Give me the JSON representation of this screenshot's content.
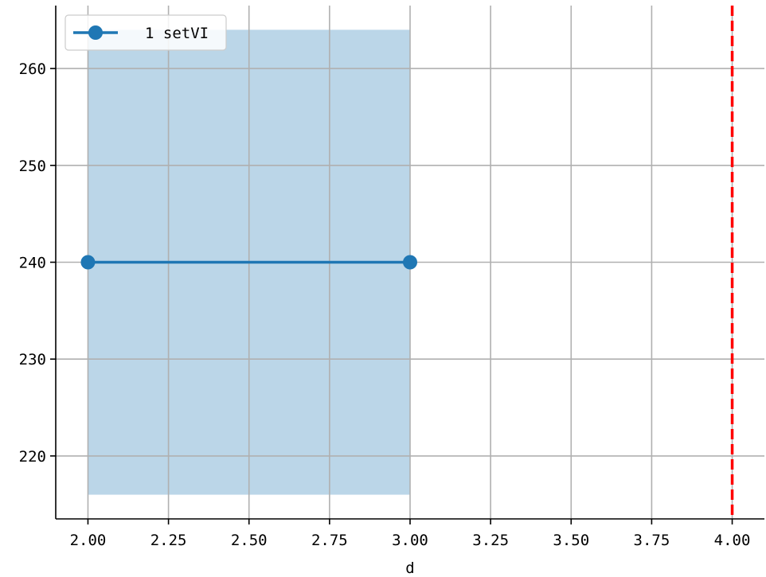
{
  "chart_data": {
    "type": "line",
    "title": "",
    "xlabel": "d",
    "ylabel": "",
    "xlim": [
      1.9,
      4.1
    ],
    "ylim": [
      213.5,
      266.5
    ],
    "xticks": [
      2.0,
      2.25,
      2.5,
      2.75,
      3.0,
      3.25,
      3.5,
      3.75,
      4.0
    ],
    "xtick_labels": [
      "2.00",
      "2.25",
      "2.50",
      "2.75",
      "3.00",
      "3.25",
      "3.50",
      "3.75",
      "4.00"
    ],
    "yticks": [
      220,
      230,
      240,
      250,
      260
    ],
    "ytick_labels": [
      "220",
      "230",
      "240",
      "250",
      "260"
    ],
    "grid": true,
    "legend_position": "top-left",
    "series": [
      {
        "name": "1 setVI",
        "x": [
          2.0,
          3.0
        ],
        "y": [
          240,
          240
        ],
        "color": "#1f77b4",
        "marker": "circle",
        "band": {
          "x0": 2.0,
          "x1": 3.0,
          "y0": 216,
          "y1": 264,
          "color": "#1f77b4",
          "alpha": 0.3
        }
      }
    ],
    "vlines": [
      {
        "x": 4.0,
        "color": "#ff0000",
        "style": "dashed"
      }
    ]
  }
}
